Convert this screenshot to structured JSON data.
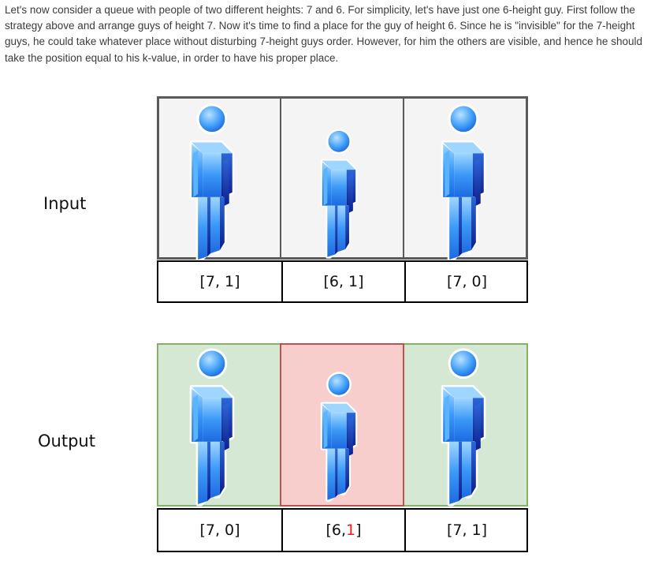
{
  "paragraph": "Let's now consider a queue with people of two different heights: 7 and 6. For simplicity, let's have just one 6-height guy. First follow the strategy above and arrange guys of height 7. Now it's time to find a place for the guy of height 6. Since he is \"invisible\" for the 7-height guys, he could take whatever place without disturbing 7-height guys order. However, for him the others are visible, and hence he should take the position equal to his k-value, in order to have his proper place.",
  "input": {
    "label": "Input",
    "people": [
      {
        "text": "[7, 1]",
        "height": "tall"
      },
      {
        "text": "[6, 1]",
        "height": "short"
      },
      {
        "text": "[7, 0]",
        "height": "tall"
      }
    ]
  },
  "output": {
    "label": "Output",
    "people": [
      {
        "text": "[7, 0]",
        "height": "tall"
      },
      {
        "prefix": "[6, ",
        "k": "1",
        "suffix": "]",
        "height": "short",
        "highlight": true
      },
      {
        "text": "[7, 1]",
        "height": "tall"
      }
    ]
  },
  "colors": {
    "input_cell_bg": "#f4f4f4",
    "output_cell_bg": "#d5e8d4",
    "highlight_cell_bg": "#f8cecc",
    "highlight_k_text": "#e0201c",
    "person_blue_light": "#7fc4ff",
    "person_blue_dark": "#1230a8"
  },
  "icons": [
    "person-figure-icon"
  ]
}
